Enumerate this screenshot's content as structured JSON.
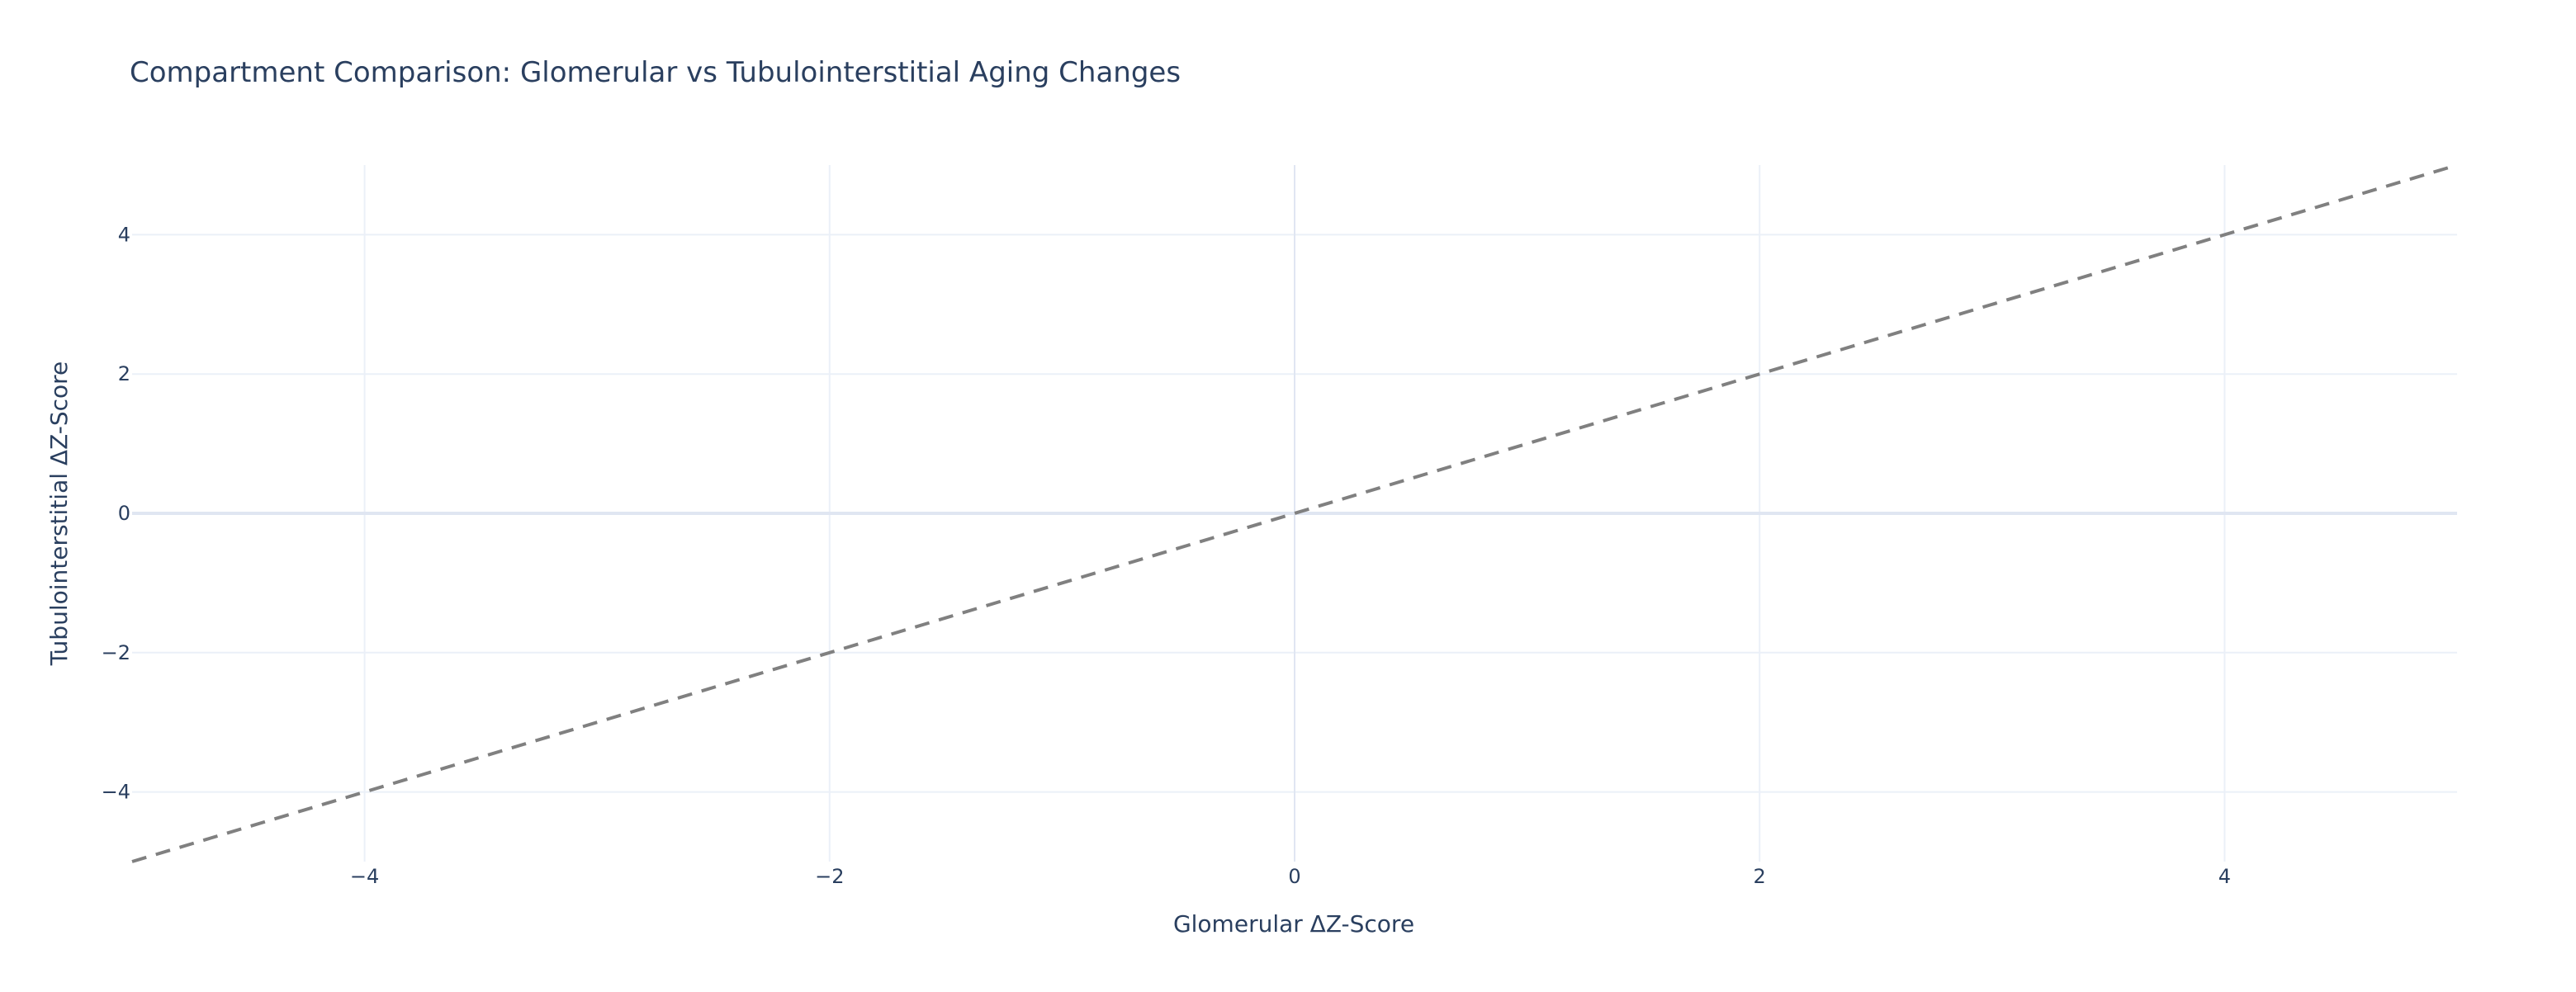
{
  "chart_data": {
    "type": "scatter",
    "title": "Compartment Comparison: Glomerular vs Tubulointerstitial Aging Changes",
    "xlabel": "Glomerular ΔZ-Score",
    "ylabel": "Tubulointerstitial ΔZ-Score",
    "xlim": [
      -5,
      5
    ],
    "ylim": [
      -5,
      5
    ],
    "x_ticks": [
      -4,
      -2,
      0,
      2,
      4
    ],
    "x_tick_labels": [
      "−4",
      "−2",
      "0",
      "2",
      "4"
    ],
    "y_ticks": [
      -4,
      -2,
      0,
      2,
      4
    ],
    "y_tick_labels": [
      "−4",
      "−2",
      "0",
      "2",
      "4"
    ],
    "grid": true,
    "legend": "none",
    "series": [],
    "reference_line": {
      "x": [
        -5,
        5
      ],
      "y": [
        -5,
        5
      ],
      "style": "dashed",
      "color": "#808080"
    },
    "colors": {
      "text": "#2a3f5f",
      "grid": "#ebf0f8",
      "zeroline": "#e0e6f2",
      "background": "#ffffff"
    }
  }
}
